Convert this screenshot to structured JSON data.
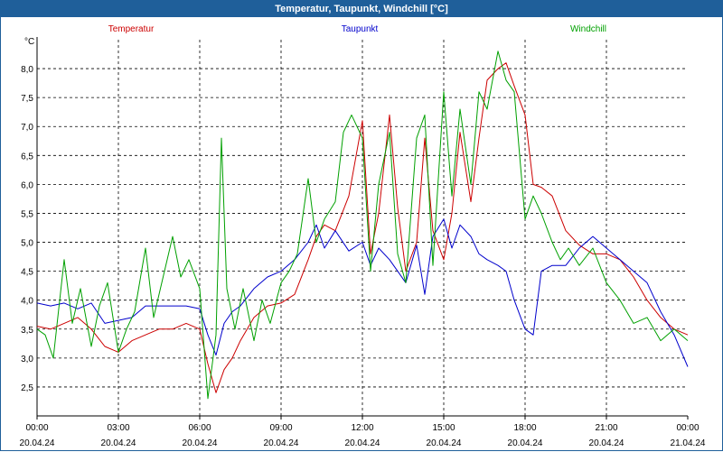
{
  "window": {
    "title": "Temperatur, Taupunkt, Windchill [°C]"
  },
  "colors": {
    "titlebar": "#1f5f9a",
    "grid": "#000000",
    "axis": "#000000"
  },
  "chart_data": {
    "type": "line",
    "title": "Temperatur, Taupunkt, Windchill [°C]",
    "ylabel": "°C",
    "xlabel": "",
    "ylim": [
      2.0,
      8.5
    ],
    "xlim": [
      0,
      24
    ],
    "y_ticks": [
      2.5,
      3.0,
      3.5,
      4.0,
      4.5,
      5.0,
      5.5,
      6.0,
      6.5,
      7.0,
      7.5,
      8.0
    ],
    "y_tick_labels": [
      "2,5",
      "3,0",
      "3,5",
      "4,0",
      "4,5",
      "5,0",
      "5,5",
      "6,0",
      "6,5",
      "7,0",
      "7,5",
      "8,0"
    ],
    "x_ticks": [
      {
        "h": 0,
        "time": "00:00",
        "date": "20.04.24"
      },
      {
        "h": 3,
        "time": "03:00",
        "date": "20.04.24"
      },
      {
        "h": 6,
        "time": "06:00",
        "date": "20.04.24"
      },
      {
        "h": 9,
        "time": "09:00",
        "date": "20.04.24"
      },
      {
        "h": 12,
        "time": "12:00",
        "date": "20.04.24"
      },
      {
        "h": 15,
        "time": "15:00",
        "date": "20.04.24"
      },
      {
        "h": 18,
        "time": "18:00",
        "date": "20.04.24"
      },
      {
        "h": 21,
        "time": "21:00",
        "date": "20.04.24"
      },
      {
        "h": 24,
        "time": "00:00",
        "date": "21.04.24"
      }
    ],
    "grid": true,
    "series": [
      {
        "name": "Temperatur",
        "color": "#cc0000",
        "x": [
          0,
          0.5,
          1,
          1.5,
          2,
          2.5,
          3,
          3.5,
          4,
          4.5,
          5,
          5.5,
          6,
          6.3,
          6.6,
          6.9,
          7.2,
          7.5,
          8,
          8.5,
          9,
          9.5,
          10,
          10.3,
          10.6,
          11,
          11.5,
          12,
          12.3,
          12.6,
          13,
          13.3,
          13.6,
          14,
          14.3,
          14.6,
          15,
          15.3,
          15.6,
          16,
          16.3,
          16.6,
          17,
          17.3,
          17.6,
          18,
          18.3,
          18.6,
          19,
          19.5,
          20,
          20.5,
          21,
          21.5,
          22,
          22.5,
          23,
          23.5,
          24
        ],
        "values": [
          3.55,
          3.5,
          3.6,
          3.7,
          3.5,
          3.2,
          3.1,
          3.3,
          3.4,
          3.5,
          3.5,
          3.6,
          3.5,
          2.9,
          2.4,
          2.8,
          3.0,
          3.3,
          3.7,
          3.9,
          3.95,
          4.1,
          4.7,
          5.1,
          5.3,
          5.2,
          5.8,
          7.1,
          4.8,
          5.5,
          7.2,
          5.6,
          4.5,
          5.0,
          6.8,
          5.2,
          4.7,
          5.5,
          6.9,
          5.7,
          6.8,
          7.8,
          8.0,
          8.1,
          7.7,
          7.2,
          6.0,
          5.95,
          5.8,
          5.2,
          4.95,
          4.8,
          4.8,
          4.7,
          4.4,
          4.0,
          3.7,
          3.5,
          3.4
        ]
      },
      {
        "name": "Taupunkt",
        "color": "#0000cc",
        "x": [
          0,
          0.5,
          1,
          1.5,
          2,
          2.5,
          3,
          3.5,
          4,
          4.5,
          5,
          5.5,
          6,
          6.3,
          6.6,
          6.9,
          7.2,
          7.5,
          8,
          8.5,
          9,
          9.5,
          10,
          10.3,
          10.6,
          11,
          11.5,
          12,
          12.3,
          12.6,
          13,
          13.3,
          13.6,
          14,
          14.3,
          14.6,
          15,
          15.3,
          15.6,
          16,
          16.3,
          16.6,
          17,
          17.3,
          17.6,
          18,
          18.3,
          18.6,
          19,
          19.5,
          20,
          20.5,
          21,
          21.5,
          22,
          22.5,
          23,
          23.5,
          24
        ],
        "values": [
          3.95,
          3.9,
          3.95,
          3.85,
          3.95,
          3.6,
          3.65,
          3.7,
          3.9,
          3.9,
          3.9,
          3.9,
          3.85,
          3.4,
          3.05,
          3.6,
          3.8,
          3.9,
          4.2,
          4.4,
          4.5,
          4.7,
          5.0,
          5.3,
          4.9,
          5.2,
          4.85,
          5.0,
          4.6,
          4.9,
          4.7,
          4.5,
          4.3,
          4.95,
          4.1,
          5.1,
          5.4,
          4.9,
          5.3,
          5.1,
          4.8,
          4.7,
          4.6,
          4.5,
          4.0,
          3.5,
          3.4,
          4.5,
          4.6,
          4.6,
          4.9,
          5.1,
          4.9,
          4.7,
          4.5,
          4.3,
          3.8,
          3.4,
          2.85
        ]
      },
      {
        "name": "Windchill",
        "color": "#00a000",
        "x": [
          0,
          0.3,
          0.6,
          1,
          1.3,
          1.6,
          2,
          2.3,
          2.6,
          3,
          3.3,
          3.6,
          4,
          4.3,
          4.6,
          5,
          5.3,
          5.6,
          6,
          6.3,
          6.6,
          6.8,
          7,
          7.3,
          7.6,
          8,
          8.3,
          8.6,
          9,
          9.3,
          9.6,
          10,
          10.3,
          10.6,
          11,
          11.3,
          11.6,
          12,
          12.3,
          12.6,
          13,
          13.3,
          13.6,
          14,
          14.3,
          14.6,
          15,
          15.3,
          15.6,
          16,
          16.3,
          16.6,
          17,
          17.3,
          17.6,
          18,
          18.3,
          18.6,
          19,
          19.3,
          19.6,
          20,
          20.5,
          21,
          21.5,
          22,
          22.5,
          23,
          23.5,
          24
        ],
        "values": [
          3.5,
          3.4,
          3.0,
          4.7,
          3.6,
          4.2,
          3.2,
          3.9,
          4.3,
          3.1,
          3.5,
          3.8,
          4.9,
          3.7,
          4.3,
          5.1,
          4.4,
          4.7,
          4.2,
          2.3,
          3.4,
          6.8,
          4.2,
          3.5,
          4.2,
          3.3,
          4.0,
          3.6,
          4.3,
          4.5,
          4.8,
          6.1,
          5.0,
          5.4,
          5.7,
          6.9,
          7.2,
          6.8,
          4.5,
          6.0,
          6.9,
          4.8,
          4.3,
          6.8,
          7.2,
          4.6,
          7.6,
          5.8,
          7.3,
          6.0,
          7.6,
          7.3,
          8.3,
          7.8,
          7.6,
          5.4,
          5.8,
          5.5,
          5.0,
          4.7,
          4.9,
          4.6,
          4.9,
          4.3,
          4.0,
          3.6,
          3.7,
          3.3,
          3.5,
          3.3
        ]
      }
    ]
  }
}
